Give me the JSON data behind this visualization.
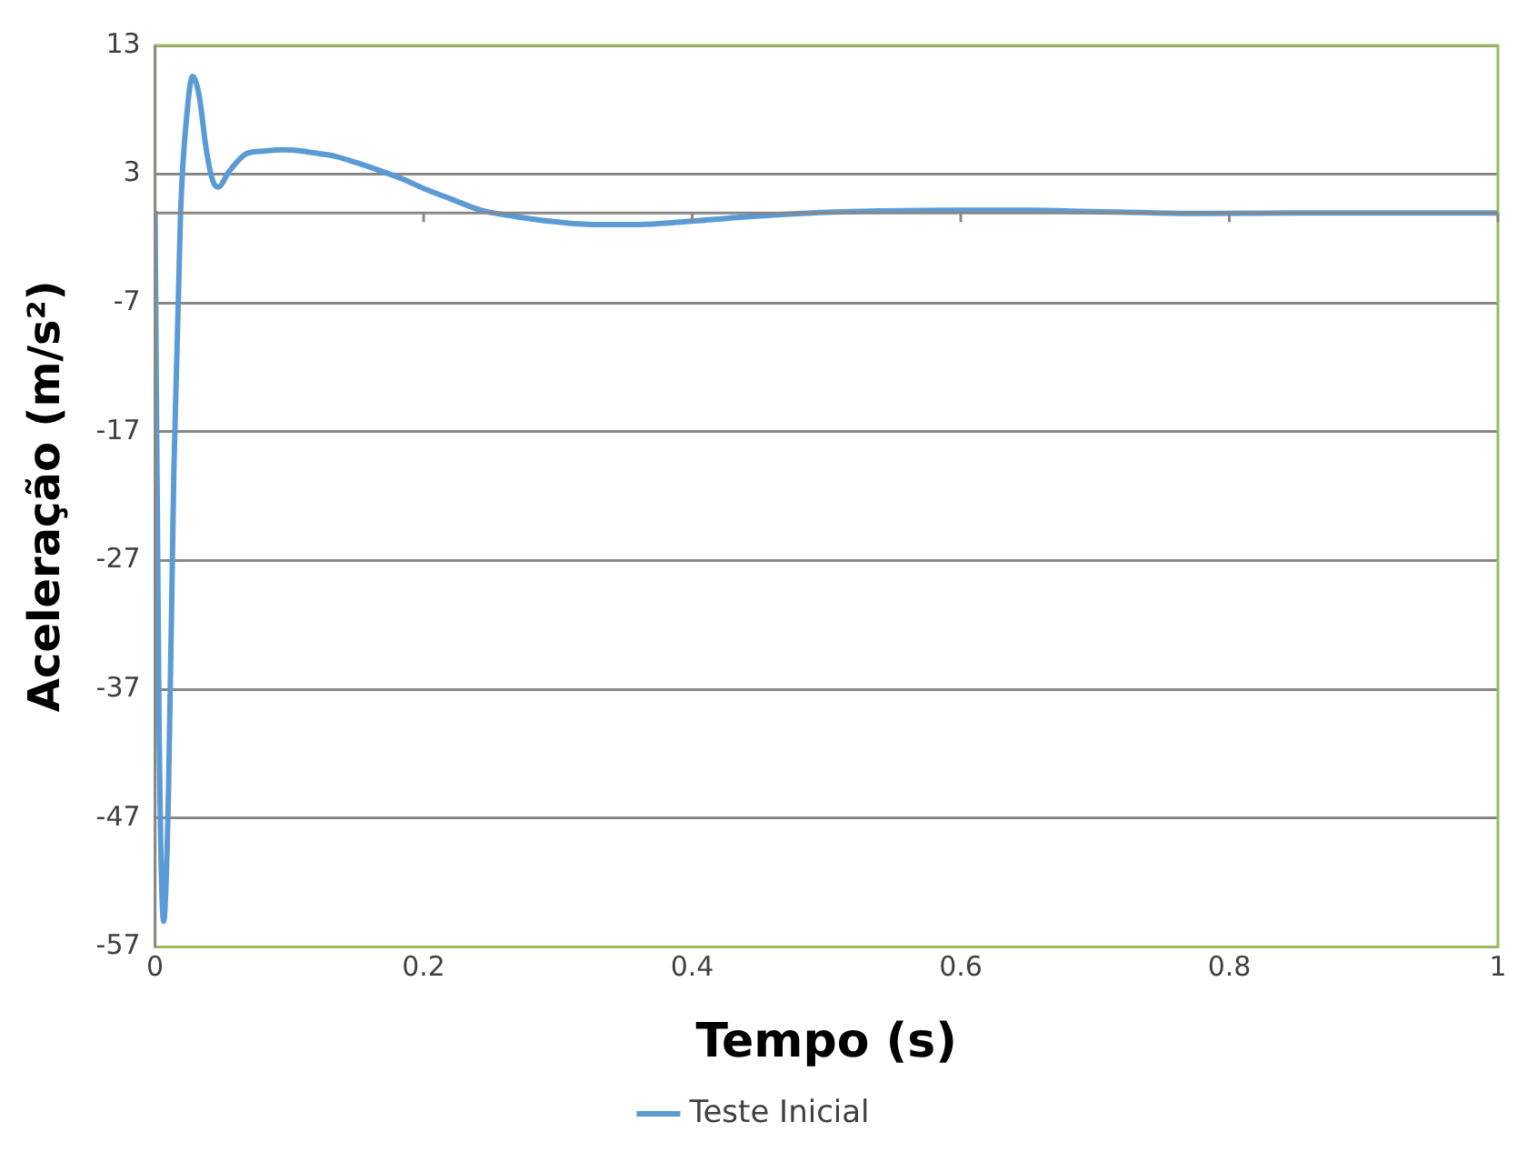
{
  "chart_data": {
    "type": "line",
    "xlabel": "Tempo (s)",
    "ylabel": "Aceleração (m/s²)",
    "xlim": [
      0,
      1
    ],
    "xticks": [
      0,
      0.2,
      0.4,
      0.6,
      0.8,
      1
    ],
    "ylim": [
      -57,
      13
    ],
    "yticks": [
      -57,
      -47,
      -37,
      -27,
      -17,
      -7,
      3,
      13
    ],
    "grid": "y",
    "legend": "bottom",
    "marker": "none",
    "line_style": "solid",
    "series": [
      {
        "name": "Teste Inicial",
        "color": "#5b9bd5",
        "x": [
          0,
          0.003,
          0.0064,
          0.01,
          0.014,
          0.019,
          0.024,
          0.028,
          0.033,
          0.038,
          0.043,
          0.047,
          0.055,
          0.068,
          0.08,
          0.095,
          0.11,
          0.122,
          0.134,
          0.15,
          0.167,
          0.185,
          0.2,
          0.22,
          0.243,
          0.264,
          0.29,
          0.325,
          0.36,
          0.393,
          0.44,
          0.489,
          0.54,
          0.598,
          0.65,
          0.7,
          0.78,
          0.85,
          0.92,
          1
        ],
        "values": [
          0,
          -40,
          -55,
          -45,
          -20,
          0,
          8,
          10.6,
          9,
          5,
          2.5,
          2.0,
          3.2,
          4.6,
          4.8,
          4.9,
          4.8,
          4.6,
          4.4,
          3.9,
          3.3,
          2.6,
          1.9,
          1.1,
          0.2,
          -0.2,
          -0.6,
          -0.9,
          -0.9,
          -0.7,
          -0.3,
          0,
          0.15,
          0.2,
          0.2,
          0.1,
          -0.05,
          0,
          0,
          0
        ]
      }
    ]
  }
}
